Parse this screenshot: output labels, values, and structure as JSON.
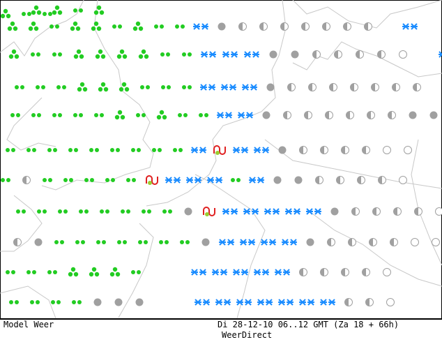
{
  "footer": {
    "model": "Model Weer",
    "date": "Di 28-12-10 06..12 GMT (Za 18 + 66h)",
    "source": "WeerDirect"
  }
}
